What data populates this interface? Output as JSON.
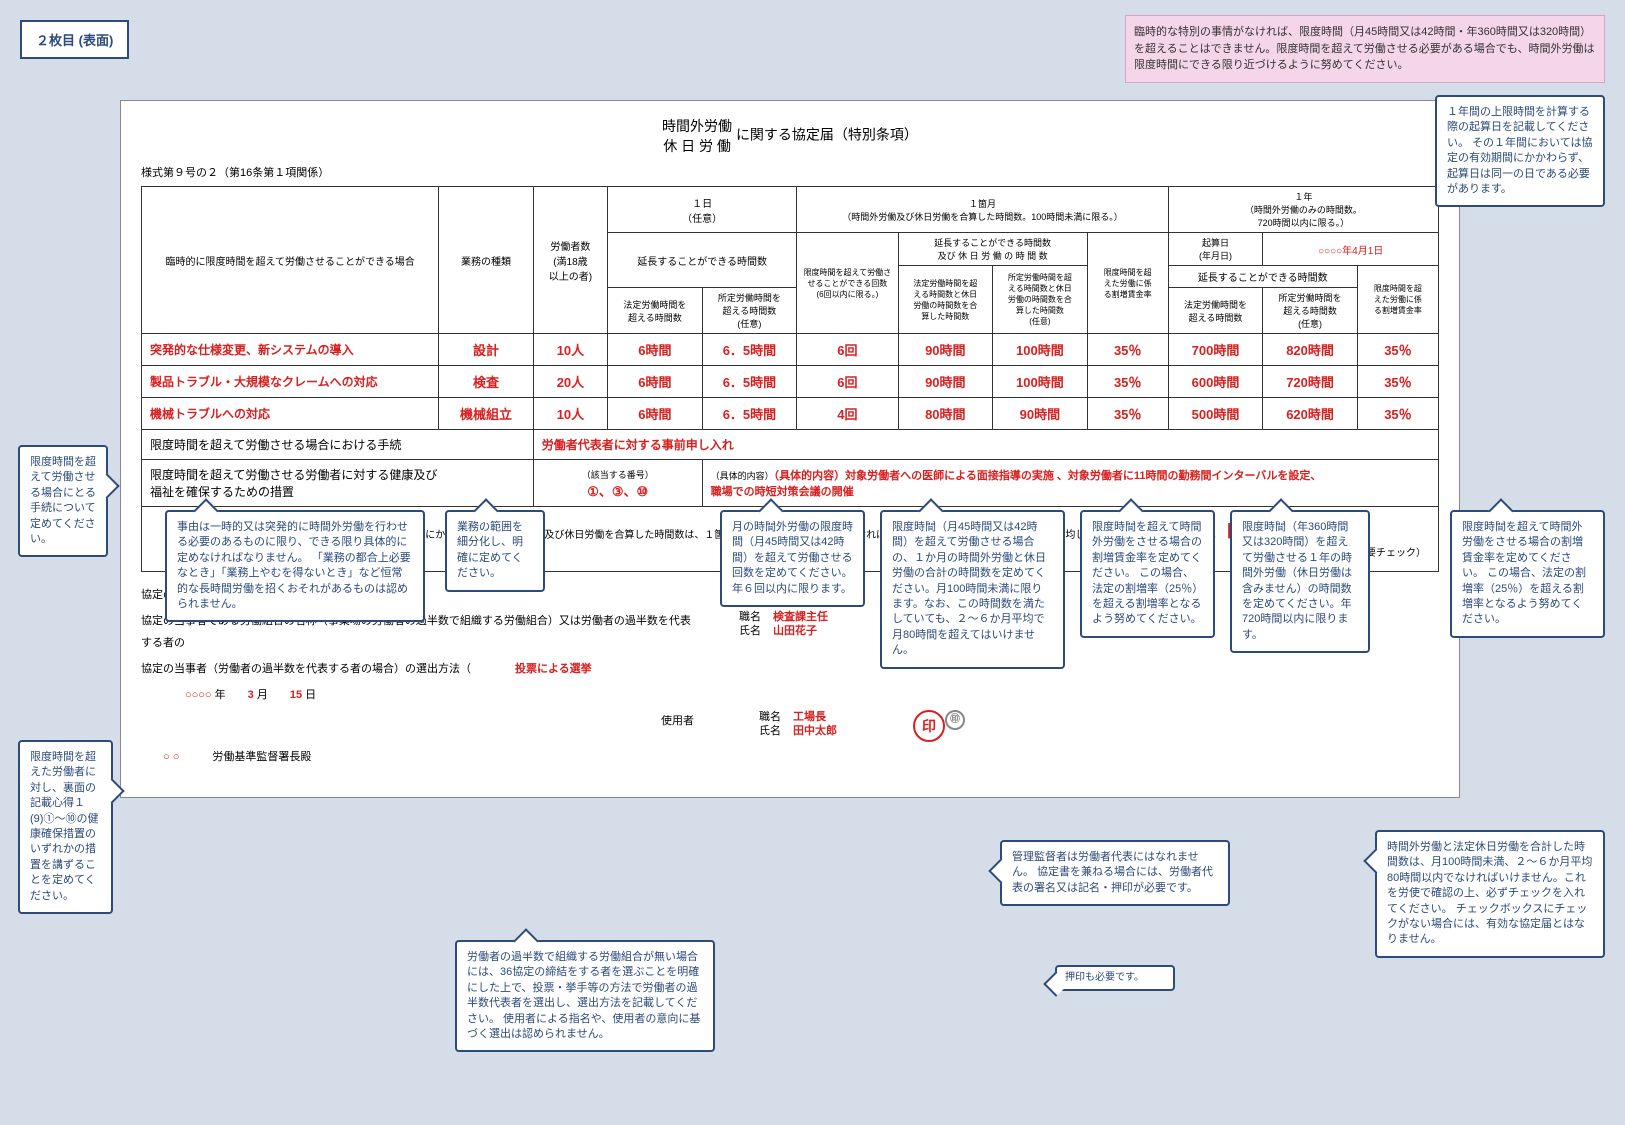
{
  "pageBadge": "２枚目\n(表面)",
  "notice": "臨時的な特別の事情がなければ、限度時間（月45時間又は42時間・年360時間又は320時間）を超えることはできません。限度時間を超えて労働させる必要がある場合でも、時間外労働は限度時間にできる限り近づけるように努めてください。",
  "title1": "時間外労働",
  "title2": "休 日 労 働",
  "title3": "に関する協定届（特別条項）",
  "formNum": "様式第９号の２（第16条第１項関係）",
  "headers": {
    "case": "臨時的に限度時間を超えて労働させることができる場合",
    "type": "業務の種類",
    "workers": "労働者数\n(満18歳\n以上の者)",
    "oneDay": "１日\n（任意）",
    "oneMonth": "１箇月\n（時間外労働及び休日労働を合算した時間数。100時間未満に限る。）",
    "oneYear": "１年\n（時間外労働のみの時間数。\n720時間以内に限る。）",
    "startDate": "起算日\n(年月日)",
    "startDateVal": "○○○○年4月1日",
    "extendable": "延長することができる時間数",
    "legal": "法定労働時間を\n超える時間数",
    "fixed": "所定労働時間を\n超える時間数\n(任意)",
    "times": "限度時間を超えて労働させることができる回数\n(6回以内に限る。)",
    "extendHours": "延長することができる時間数\n及び 休 日 労 働 の 時 間 数",
    "legalPlus": "法定労働時間を超\nえる時間数と休日\n労働の時間数を合\n算した時間数",
    "fixedPlus": "所定労働時間を超\nえる時間数と休日\n労働の時間数を合\n算した時間数\n(任意)",
    "premium": "限度時間を超\nえた労働に係\nる割増賃金率",
    "yearPremium": "限度時間を超\nえた労働に係\nる割増賃金率"
  },
  "rows": [
    {
      "reason": "突発的な仕様変更、新システムの導入",
      "type": "設計",
      "workers": "10人",
      "d1": "6時間",
      "d2": "6．5時間",
      "times": "6回",
      "m1": "90時間",
      "m2": "100時間",
      "mp": "35％",
      "y1": "700時間",
      "y2": "820時間",
      "yp": "35％"
    },
    {
      "reason": "製品トラブル・大規模なクレームへの対応",
      "type": "検査",
      "workers": "20人",
      "d1": "6時間",
      "d2": "6．5時間",
      "times": "6回",
      "m1": "90時間",
      "m2": "100時間",
      "mp": "35％",
      "y1": "600時間",
      "y2": "720時間",
      "yp": "35％"
    },
    {
      "reason": "機械トラブルへの対応",
      "type": "機械組立",
      "workers": "10人",
      "d1": "6時間",
      "d2": "6．5時間",
      "times": "4回",
      "m1": "80時間",
      "m2": "90時間",
      "mp": "35％",
      "y1": "500時間",
      "y2": "620時間",
      "yp": "35％"
    }
  ],
  "proc": {
    "label1": "限度時間を超えて労働させる場合における手続",
    "val1": "労働者代表者に対する事前申し入れ",
    "label2": "限度時間を超えて労働させる労働者に対する健康及び\n福祉を確保するための措置",
    "num": "（該当する番号）\n①、③、⑩",
    "content": "（具体的内容）対象労働者への医師による面接指導の実施 、対象労働者に11時間の勤務間インターバルを設定、\n職場での時短対策会議の開催"
  },
  "noteText": "上記で定める時間数にかかわらず、時間外労働及び休日労働を合算した時間数は、１箇月について 100 時間未満でなければならず、かつ２箇月から６箇月までを平均して 80 時間を超過しないこと。",
  "checkNote": "（チェックボックスに要チェック）",
  "sig": {
    "date": "協定の成立年月日　　○○○○ 年　　3 月　　12 日",
    "union": "協定の当事者である労働組合の名称（事業場の労働者の過半数で組織する労働組合）又は労働者の過半数を代表する者の",
    "method": "協定の当事者（労働者の過半数を代表する者の場合）の選出方法（　　　　投票による選挙",
    "date2": "　　　　○○○○ 年　　3 月　　15 日",
    "office": "○ ○　　　労働基準監督署長殿",
    "pos1": "職名",
    "pos1v": "検査課主任",
    "name1": "氏名",
    "name1v": "山田花子",
    "user": "使用者",
    "pos2": "職名",
    "pos2v": "工場長",
    "name2": "氏名",
    "name2v": "田中太郎"
  },
  "callouts": {
    "topRight": "１年間の上限時間を計算する際の起算日を記載してください。\nその１年間においては協定の有効期間にかかわらず、起算日は同一の日である必要があります。",
    "left1": "限度時間を超えて労働させる場合にとる手続について定めてください。",
    "left2": "限度時間を超えた労働者に対し、裏面の記載心得１(9)①～⑩の健康確保措置のいずれかの措置を講ずることを定めてください。",
    "reason": "事由は一時的又は突発的に時間外労働を行わせる必要のあるものに限り、できる限り具体的に定めなければなりません。\n「業務の都合上必要なとき」「業務上やむを得ないとき」など恒常的な長時間労働を招くおそれがあるものは認められません。",
    "gyomu": "業務の範囲を細分化し、明確に定めてください。",
    "month": "月の時間外労働の限度時間（月45時間又は42時間）を超えて労働させる回数を定めてください。年６回以内に限ります。",
    "gendo1": "限度時間（月45時間又は42時間）を超えて労働させる場合の、１か月の時間外労働と休日労働の合計の時間数を定めてください。月100時間未満に限ります。なお、この時間数を満たしていても、２～６か月平均で月80時間を超えてはいけません。",
    "gendo2": "限度時間を超えて時間外労働をさせる場合の割増賃金率を定めてください。\nこの場合、法定の割増率（25％）を超える割増率となるよう努めてください。",
    "gendo3": "限度時間（年360時間又は320時間）を超えて労働させる１年の時間外労働（休日労働は含みません）の時間数を定めてください。年720時間以内に限ります。",
    "gendo4": "限度時間を超えて時間外労働をさせる場合の割増賃金率を定めてください。\nこの場合、法定の割増率（25％）を超える割増率となるよう努めてください。",
    "union": "労働者の過半数で組織する労働組合が無い場合には、36協定の締結をする者を選ぶことを明確にした上で、投票・挙手等の方法で労働者の過半数代表者を選出し、選出方法を記載してください。\n使用者による指名や、使用者の意向に基づく選出は認められません。",
    "kanri": "管理監督者は労働者代表にはなれません。\n\n協定書を兼ねる場合には、労働者代表の署名又は記名・押印が必要です。",
    "check": "時間外労働と法定休日労働を合計した時間数は、月100時間未満、２～６か月平均80時間以内でなければいけません。これを労使で確認の上、必ずチェックを入れてください。\nチェックボックスにチェックがない場合には、有効な協定届とはなりません。",
    "seal": "押印も必要です。"
  },
  "colors": {
    "border": "#2c4a7a",
    "red": "#d82020",
    "bg": "#d4dde8",
    "notice": "#f5d5e8"
  }
}
